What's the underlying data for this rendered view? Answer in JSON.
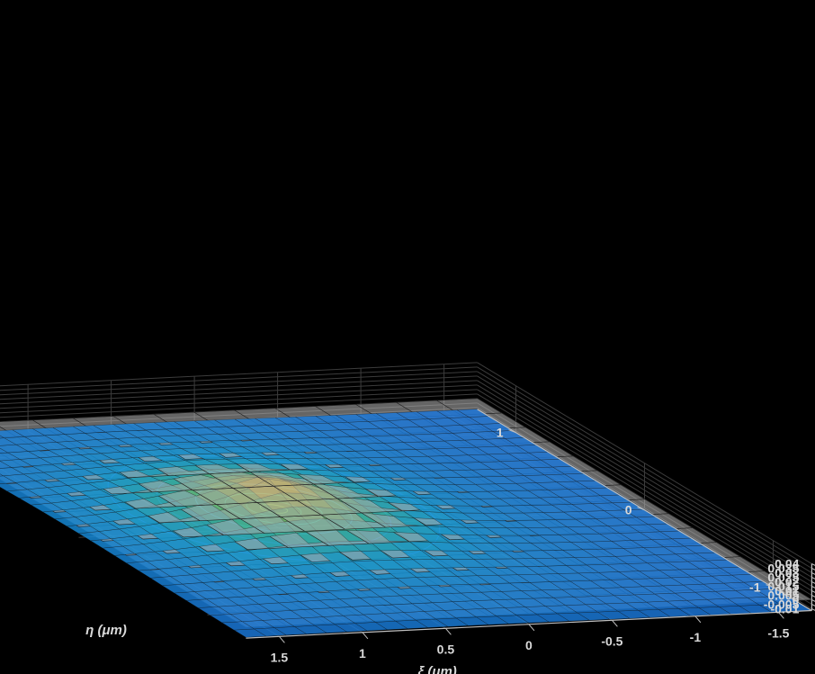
{
  "chart_data": {
    "type": "surface3d",
    "title": "",
    "xlabel": "ξ (μm)",
    "ylabel": "η (μm)",
    "zlabel": "",
    "z_ticks": [
      "0.04",
      "0.035",
      "0.03",
      "0.025",
      "0.02",
      "0.015",
      "0.01",
      "0.005",
      "0",
      "-0.005",
      "-0.01"
    ],
    "xi_ticks": [
      "1.5",
      "1",
      "0.5",
      "0",
      "-0.5",
      "-1",
      "-1.5"
    ],
    "eta_ticks": [
      "1",
      "0",
      "-1"
    ],
    "zlim": [
      -0.012,
      0.04
    ],
    "xi_range": [
      -1.7,
      1.7
    ],
    "eta_range": [
      -1.3,
      1.3
    ],
    "grid": true,
    "colormap": "parula",
    "background": "#000000",
    "grid_color": "#3c3c3c",
    "axis_color": "#bfbfbf",
    "surfaces": [
      {
        "label_shown": false,
        "shape": "sharp peak, exponential decay",
        "peak": 0.0375,
        "peak_at": [
          0.45,
          0.1
        ],
        "base": -0.012,
        "mesh_color": "#111111",
        "colored": true
      },
      {
        "label_shown": false,
        "shape": "planar sheet",
        "level": 0,
        "color": "#b8b8b8"
      }
    ],
    "contour": {
      "plane": "z=0 (projection)",
      "center": [
        0.45,
        0.1
      ],
      "colors": [
        "#2233ff",
        "#1e8cff",
        "#19d4b0",
        "#b9ff40"
      ]
    }
  }
}
